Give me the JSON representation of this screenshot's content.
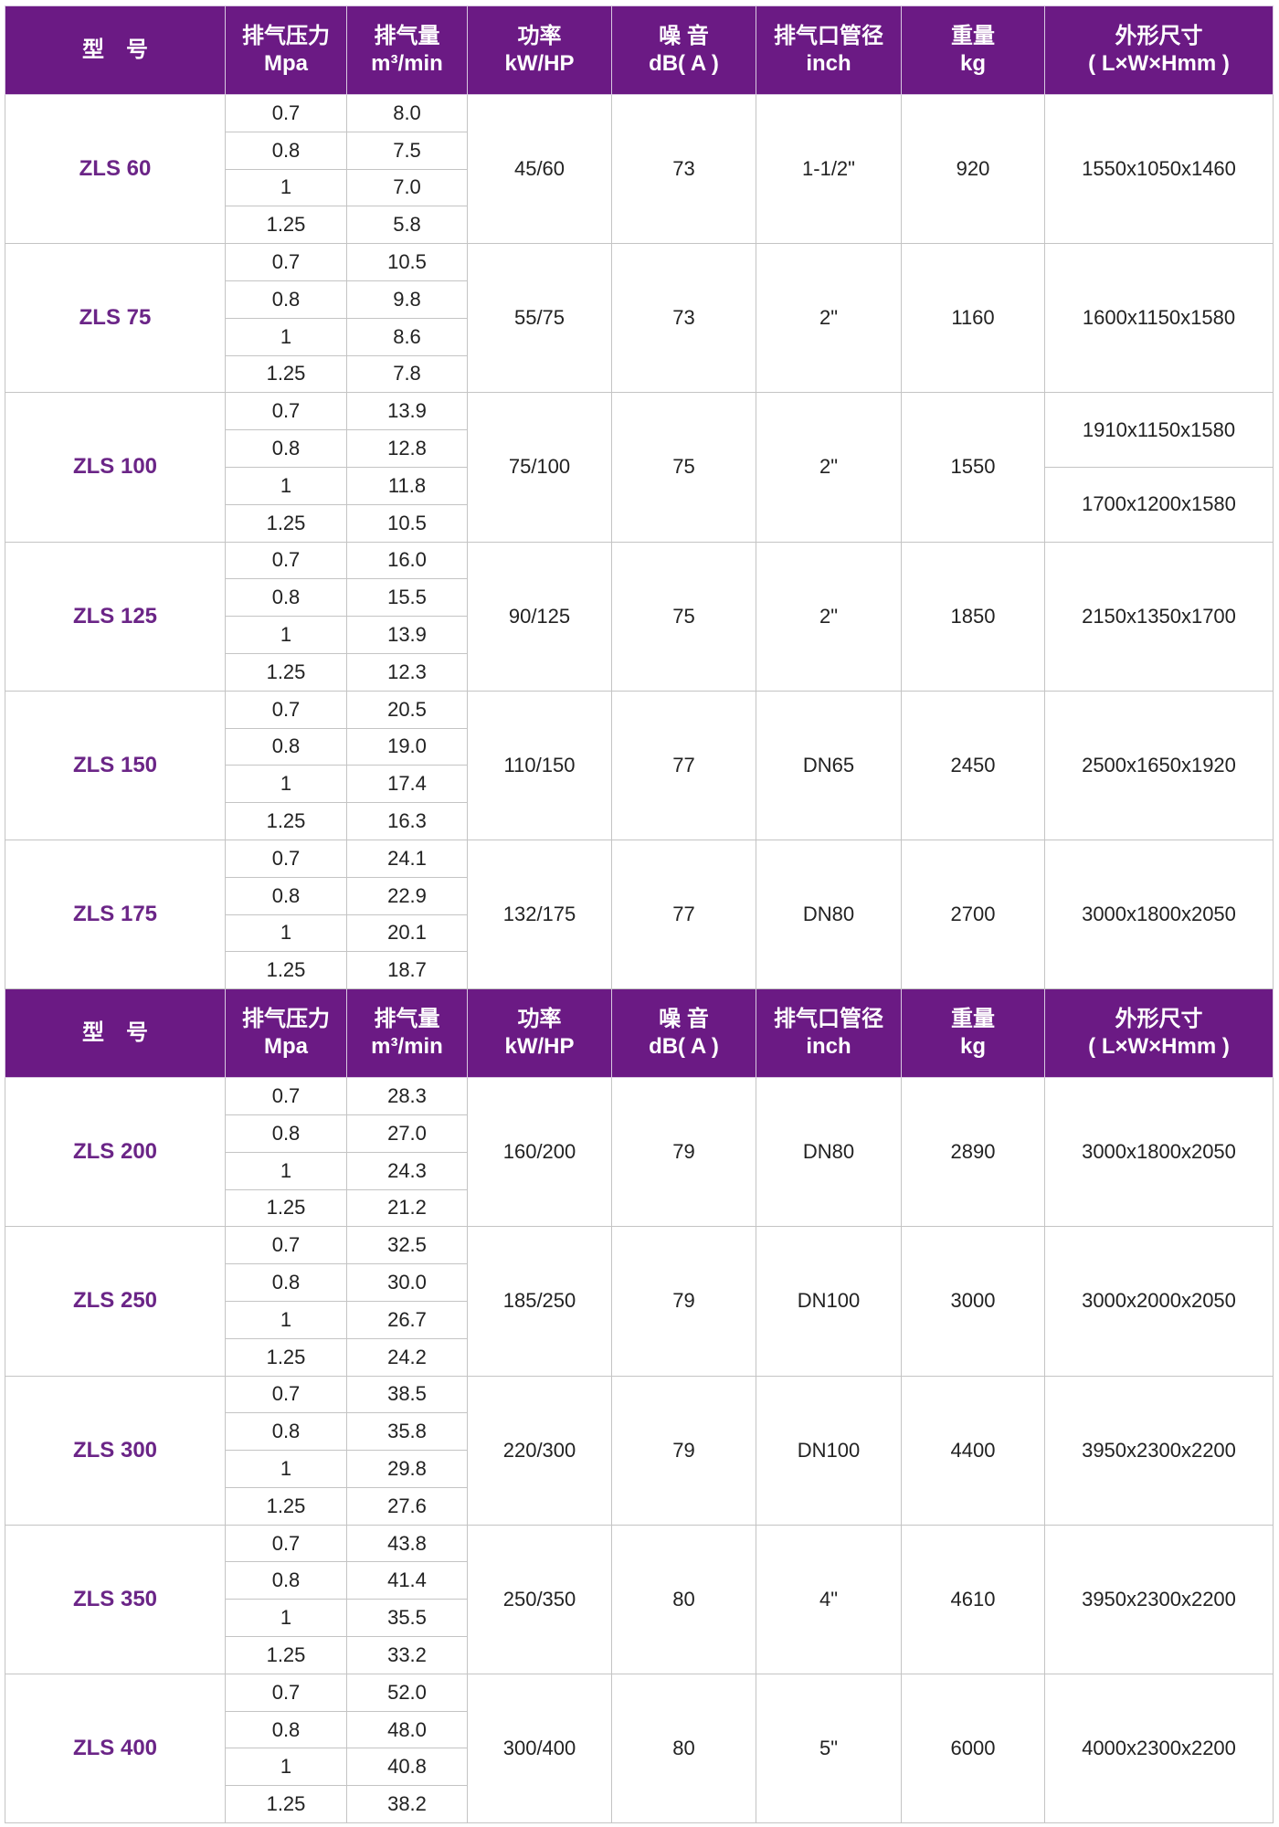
{
  "colors": {
    "header_bg": "#6b1a84",
    "model_text": "#6b2587"
  },
  "headers": [
    {
      "l1": "型　号",
      "l2": ""
    },
    {
      "l1": "排气压力",
      "l2": "Mpa"
    },
    {
      "l1": "排气量",
      "l2": "m³/min"
    },
    {
      "l1": "功率",
      "l2": "kW/HP"
    },
    {
      "l1": "噪 音",
      "l2": "dB( A )"
    },
    {
      "l1": "排气口管径",
      "l2": "inch"
    },
    {
      "l1": "重量",
      "l2": "kg"
    },
    {
      "l1": "外形尺寸",
      "l2": "( L×W×Hmm )"
    }
  ],
  "sections": [
    {
      "models": [
        {
          "model": "ZLS 60",
          "pressure": [
            "0.7",
            "0.8",
            "1",
            "1.25"
          ],
          "flow": [
            "8.0",
            "7.5",
            "7.0",
            "5.8"
          ],
          "power": "45/60",
          "noise": "73",
          "outlet": "1-1/2\"",
          "weight": "920",
          "dims": [
            "1550x1050x1460"
          ]
        },
        {
          "model": "ZLS 75",
          "pressure": [
            "0.7",
            "0.8",
            "1",
            "1.25"
          ],
          "flow": [
            "10.5",
            "9.8",
            "8.6",
            "7.8"
          ],
          "power": "55/75",
          "noise": "73",
          "outlet": "2\"",
          "weight": "1160",
          "dims": [
            "1600x1150x1580"
          ]
        },
        {
          "model": "ZLS 100",
          "pressure": [
            "0.7",
            "0.8",
            "1",
            "1.25"
          ],
          "flow": [
            "13.9",
            "12.8",
            "11.8",
            "10.5"
          ],
          "power": "75/100",
          "noise": "75",
          "outlet": "2\"",
          "weight": "1550",
          "dims": [
            "1910x1150x1580",
            "1700x1200x1580"
          ]
        },
        {
          "model": "ZLS 125",
          "pressure": [
            "0.7",
            "0.8",
            "1",
            "1.25"
          ],
          "flow": [
            "16.0",
            "15.5",
            "13.9",
            "12.3"
          ],
          "power": "90/125",
          "noise": "75",
          "outlet": "2\"",
          "weight": "1850",
          "dims": [
            "2150x1350x1700"
          ]
        },
        {
          "model": "ZLS 150",
          "pressure": [
            "0.7",
            "0.8",
            "1",
            "1.25"
          ],
          "flow": [
            "20.5",
            "19.0",
            "17.4",
            "16.3"
          ],
          "power": "110/150",
          "noise": "77",
          "outlet": "DN65",
          "weight": "2450",
          "dims": [
            "2500x1650x1920"
          ]
        },
        {
          "model": "ZLS 175",
          "pressure": [
            "0.7",
            "0.8",
            "1",
            "1.25"
          ],
          "flow": [
            "24.1",
            "22.9",
            "20.1",
            "18.7"
          ],
          "power": "132/175",
          "noise": "77",
          "outlet": "DN80",
          "weight": "2700",
          "dims": [
            "3000x1800x2050"
          ]
        }
      ]
    },
    {
      "models": [
        {
          "model": "ZLS 200",
          "pressure": [
            "0.7",
            "0.8",
            "1",
            "1.25"
          ],
          "flow": [
            "28.3",
            "27.0",
            "24.3",
            "21.2"
          ],
          "power": "160/200",
          "noise": "79",
          "outlet": "DN80",
          "weight": "2890",
          "dims": [
            "3000x1800x2050"
          ]
        },
        {
          "model": "ZLS 250",
          "pressure": [
            "0.7",
            "0.8",
            "1",
            "1.25"
          ],
          "flow": [
            "32.5",
            "30.0",
            "26.7",
            "24.2"
          ],
          "power": "185/250",
          "noise": "79",
          "outlet": "DN100",
          "weight": "3000",
          "dims": [
            "3000x2000x2050"
          ]
        },
        {
          "model": "ZLS 300",
          "pressure": [
            "0.7",
            "0.8",
            "1",
            "1.25"
          ],
          "flow": [
            "38.5",
            "35.8",
            "29.8",
            "27.6"
          ],
          "power": "220/300",
          "noise": "79",
          "outlet": "DN100",
          "weight": "4400",
          "dims": [
            "3950x2300x2200"
          ]
        },
        {
          "model": "ZLS 350",
          "pressure": [
            "0.7",
            "0.8",
            "1",
            "1.25"
          ],
          "flow": [
            "43.8",
            "41.4",
            "35.5",
            "33.2"
          ],
          "power": "250/350",
          "noise": "80",
          "outlet": "4\"",
          "weight": "4610",
          "dims": [
            "3950x2300x2200"
          ]
        },
        {
          "model": "ZLS 400",
          "pressure": [
            "0.7",
            "0.8",
            "1",
            "1.25"
          ],
          "flow": [
            "52.0",
            "48.0",
            "40.8",
            "38.2"
          ],
          "power": "300/400",
          "noise": "80",
          "outlet": "5\"",
          "weight": "6000",
          "dims": [
            "4000x2300x2200"
          ]
        }
      ]
    }
  ]
}
